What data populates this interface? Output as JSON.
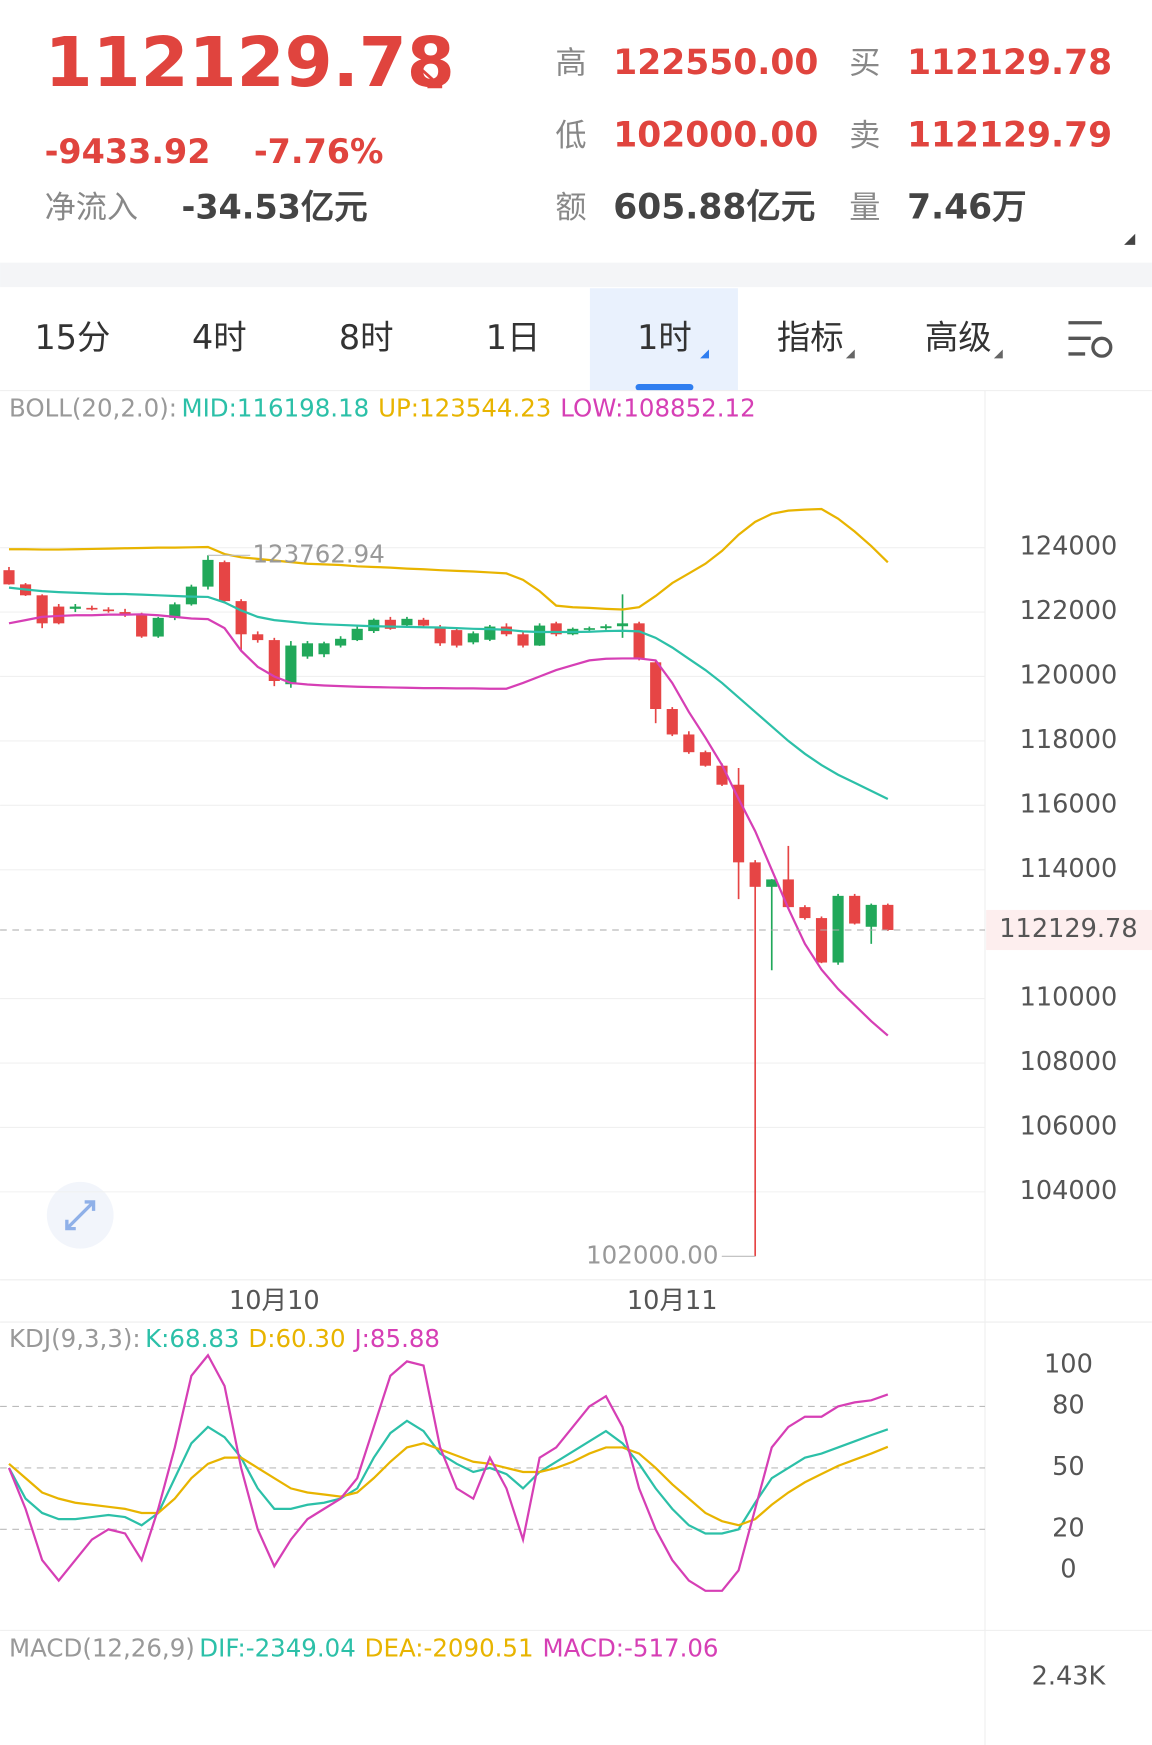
{
  "header": {
    "price": "112129.78",
    "change": "-9433.92",
    "change_pct": "-7.76%",
    "net_inflow_label": "净流入",
    "net_inflow": "-34.53亿元",
    "stats": [
      {
        "label": "高",
        "value": "122550.00"
      },
      {
        "label": "买",
        "value": "112129.78"
      },
      {
        "label": "低",
        "value": "102000.00"
      },
      {
        "label": "卖",
        "value": "112129.79"
      },
      {
        "label": "额",
        "value": "605.88亿元"
      },
      {
        "label": "量",
        "value": "7.46万"
      }
    ]
  },
  "tabs": [
    "15分",
    "4时",
    "8时",
    "1日",
    "1时",
    "指标",
    "高级"
  ],
  "active_tab": 4,
  "chart_data": [
    {
      "type": "candlestick",
      "legend_title": "BOLL(20,2.0):",
      "categories": [
        null,
        null,
        null,
        null,
        null,
        null,
        null,
        null,
        null,
        null,
        null,
        null,
        null,
        null,
        null,
        null,
        "10月10",
        null,
        null,
        null,
        null,
        null,
        null,
        null,
        null,
        null,
        null,
        null,
        null,
        null,
        null,
        null,
        null,
        null,
        null,
        null,
        null,
        null,
        null,
        null,
        "10月11",
        null,
        null,
        null,
        null,
        null,
        null,
        null,
        null,
        null,
        null,
        null,
        null,
        null
      ],
      "open": [
        123300,
        122860,
        122520,
        122170,
        122100,
        122130,
        122080,
        122000,
        121930,
        121240,
        121820,
        122240,
        122790,
        123550,
        122340,
        121310,
        121130,
        119760,
        120620,
        120690,
        120960,
        121130,
        121410,
        121760,
        121590,
        121760,
        121550,
        121440,
        121060,
        121140,
        121550,
        121310,
        120960,
        121650,
        121310,
        121450,
        121500,
        121560,
        121650,
        120440,
        118990,
        118200,
        117650,
        117230,
        116640,
        114230,
        113470,
        113700,
        112840,
        112500,
        111120,
        113190,
        112230,
        112910
      ],
      "high": [
        123400,
        122900,
        122550,
        122250,
        122250,
        122200,
        122150,
        122100,
        121980,
        121850,
        122300,
        122850,
        123762.94,
        123600,
        122400,
        121400,
        121200,
        121100,
        121100,
        121080,
        121250,
        121550,
        121800,
        121850,
        121850,
        121820,
        121600,
        121500,
        121400,
        121600,
        121650,
        121400,
        121650,
        121700,
        121520,
        121550,
        121620,
        122550,
        121700,
        120500,
        119050,
        118300,
        117700,
        117300,
        117160,
        114300,
        113710,
        114740,
        112900,
        112550,
        113250,
        113250,
        112950,
        112950
      ],
      "low": [
        122850,
        122500,
        121500,
        121620,
        122000,
        122050,
        121980,
        121850,
        121200,
        121200,
        121750,
        122200,
        122700,
        122300,
        120790,
        121050,
        119700,
        119650,
        120550,
        120600,
        120900,
        121100,
        121350,
        121450,
        121550,
        121550,
        120950,
        120900,
        121000,
        121100,
        121250,
        120900,
        120950,
        121250,
        121280,
        121400,
        121450,
        121200,
        120500,
        118550,
        118150,
        117600,
        117200,
        116600,
        113090,
        102000,
        110880,
        112800,
        112450,
        111100,
        111050,
        112300,
        111700,
        112100
      ],
      "close": [
        122860,
        122520,
        121650,
        121650,
        122170,
        122090,
        122050,
        121930,
        121240,
        121820,
        122240,
        122790,
        123620,
        122340,
        121310,
        121130,
        119860,
        120960,
        121030,
        121030,
        121170,
        121480,
        121760,
        121480,
        121790,
        121580,
        121030,
        120960,
        121340,
        121550,
        121310,
        120960,
        121580,
        121310,
        121480,
        121500,
        121560,
        121650,
        120550,
        118990,
        118200,
        117650,
        117230,
        116640,
        114230,
        113470,
        113700,
        112840,
        112500,
        111120,
        113190,
        112330,
        112910,
        112129.78
      ],
      "up_color": "#21a85a",
      "down_color": "#e64545",
      "overlays": [
        {
          "name": "MID:",
          "color": "#2cc0a8",
          "values": [
            122760,
            122700,
            122650,
            122620,
            122600,
            122580,
            122560,
            122560,
            122540,
            122520,
            122500,
            122480,
            122470,
            122300,
            122050,
            121850,
            121750,
            121700,
            121650,
            121620,
            121600,
            121580,
            121560,
            121550,
            121540,
            121530,
            121520,
            121500,
            121480,
            121470,
            121450,
            121400,
            121380,
            121380,
            121380,
            121390,
            121410,
            121420,
            121400,
            121200,
            120900,
            120550,
            120200,
            119800,
            119350,
            118900,
            118450,
            118000,
            117600,
            117250,
            116950,
            116700,
            116450,
            116198.18
          ]
        },
        {
          "name": "UP:",
          "color": "#e8b400",
          "values": [
            123950,
            123950,
            123940,
            123940,
            123950,
            123960,
            123970,
            123980,
            123990,
            124000,
            124000,
            124010,
            124020,
            123800,
            123700,
            123650,
            123600,
            123550,
            123500,
            123480,
            123460,
            123420,
            123400,
            123380,
            123350,
            123330,
            123300,
            123280,
            123260,
            123230,
            123200,
            123000,
            122650,
            122200,
            122150,
            122130,
            122100,
            122080,
            122150,
            122500,
            122900,
            123200,
            123500,
            123900,
            124400,
            124800,
            125050,
            125150,
            125180,
            125200,
            124900,
            124500,
            124050,
            123544.23
          ]
        },
        {
          "name": "LOW:",
          "color": "#d63fb5",
          "values": [
            121650,
            121750,
            121850,
            121880,
            121900,
            121900,
            121920,
            121920,
            121930,
            121900,
            121850,
            121800,
            121780,
            121500,
            120800,
            120300,
            120000,
            119800,
            119750,
            119720,
            119700,
            119680,
            119670,
            119660,
            119650,
            119640,
            119640,
            119630,
            119630,
            119620,
            119620,
            119800,
            120000,
            120200,
            120350,
            120500,
            120550,
            120560,
            120560,
            120500,
            119800,
            118900,
            118100,
            117250,
            116200,
            115200,
            114000,
            112800,
            111700,
            110900,
            110300,
            109800,
            109300,
            108852.12
          ]
        }
      ],
      "ylim": [
        101270,
        128840
      ],
      "yticks": [
        124000,
        122000,
        120000,
        118000,
        116000,
        114000,
        110000,
        108000,
        106000,
        104000
      ],
      "grid": true,
      "current_price": 112129.78,
      "high_label": 123762.94,
      "low_label": {
        "value": 102000,
        "label": "102000.00"
      }
    },
    {
      "type": "line",
      "legend_title": "KDJ(9,3,3):",
      "series": [
        {
          "name": "K:",
          "color": "#2cc0a8",
          "values": [
            50,
            35,
            28,
            25,
            25,
            26,
            27,
            26,
            22,
            28,
            45,
            62,
            70,
            65,
            55,
            40,
            30,
            30,
            32,
            33,
            35,
            40,
            55,
            67,
            73,
            68,
            57,
            52,
            48,
            50,
            47,
            40,
            48,
            53,
            58,
            63,
            68,
            62,
            52,
            40,
            30,
            22,
            18,
            18,
            20,
            33,
            45,
            50,
            55,
            57,
            60,
            63,
            66,
            68.83
          ]
        },
        {
          "name": "D:",
          "color": "#e8b400",
          "values": [
            52,
            45,
            38,
            35,
            33,
            32,
            31,
            30,
            28,
            28,
            35,
            45,
            52,
            55,
            55,
            50,
            45,
            40,
            38,
            37,
            36,
            38,
            45,
            53,
            60,
            62,
            59,
            56,
            53,
            52,
            50,
            48,
            48,
            50,
            53,
            57,
            60,
            60,
            57,
            50,
            42,
            35,
            28,
            24,
            22,
            25,
            32,
            38,
            43,
            47,
            51,
            54,
            57,
            60.3
          ],
          "value_labels": [
            null,
            null,
            null,
            null,
            null,
            null,
            null,
            null,
            null,
            null,
            null,
            null,
            null,
            null,
            null,
            null,
            null,
            null,
            null,
            null,
            null,
            null,
            null,
            null,
            null,
            null,
            null,
            null,
            null,
            null,
            null,
            null,
            null,
            null,
            null,
            null,
            null,
            null,
            null,
            null,
            null,
            null,
            null,
            null,
            null,
            null,
            null,
            null,
            null,
            null,
            null,
            null,
            null,
            "60.30"
          ]
        },
        {
          "name": "J:",
          "color": "#d63fb5",
          "values": [
            50,
            30,
            5,
            -5,
            5,
            15,
            20,
            18,
            5,
            30,
            60,
            95,
            105,
            90,
            50,
            20,
            2,
            15,
            25,
            30,
            35,
            45,
            70,
            95,
            102,
            100,
            60,
            40,
            35,
            55,
            40,
            15,
            55,
            60,
            70,
            80,
            85,
            70,
            40,
            20,
            5,
            -5,
            -10,
            -10,
            0,
            30,
            60,
            70,
            75,
            75,
            80,
            82,
            83,
            85.88
          ]
        }
      ],
      "ylim": [
        -26.6,
        120.1
      ],
      "yticks": [
        100,
        80,
        50,
        20,
        0
      ],
      "reference_lines": [
        80,
        50,
        20
      ]
    },
    {
      "type": "macd",
      "legend_title": "MACD(12,26,9)",
      "indicators": [
        {
          "name": "DIF:",
          "value": -2349.04,
          "color": "#2cc0a8"
        },
        {
          "name": "DEA:",
          "value": -2090.51,
          "color": "#e8b400"
        },
        {
          "name": "MACD:",
          "value": -517.06,
          "color": "#d63fb5"
        }
      ],
      "ylim": [
        -1500,
        5000
      ],
      "yticks": [
        {
          "value": 2430,
          "label": "2.43K"
        }
      ]
    }
  ]
}
